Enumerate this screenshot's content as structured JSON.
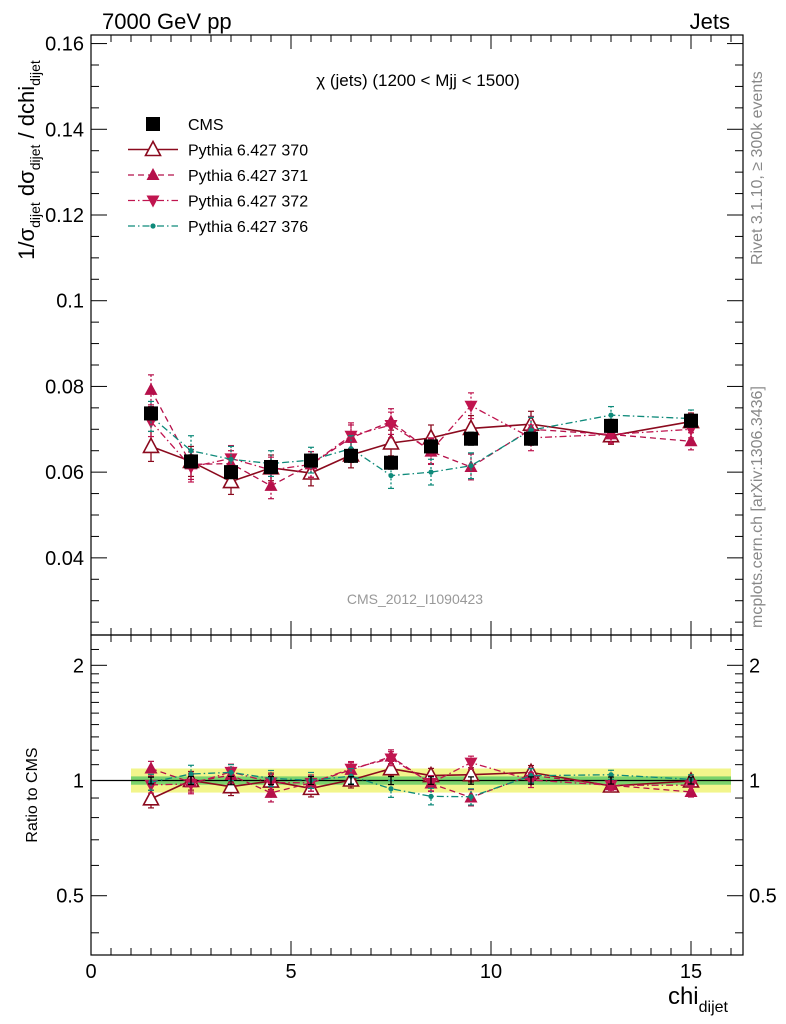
{
  "header": {
    "left": "7000 GeV pp",
    "right": "Jets"
  },
  "side_labels": {
    "rivet": "Rivet 3.1.10, ≥ 300k events",
    "mcplots": "mcplots.cern.ch [arXiv:1306.3436]"
  },
  "chart_data": {
    "type": "scatter",
    "title": "χ (jets) (1200 < Mjj < 1500)",
    "watermark": "CMS_2012_I1090423",
    "x": [
      1.5,
      2.5,
      3.5,
      4.5,
      5.5,
      6.5,
      7.5,
      8.5,
      9.5,
      11,
      13,
      15
    ],
    "xlim": [
      0,
      16.3
    ],
    "xticks": [
      "0",
      "5",
      "10",
      "15"
    ],
    "xlabel": "chi",
    "xlabel_sub": "dijet",
    "ylabel": {
      "p1": "1/σ",
      "s1": "dijet",
      "p2": " dσ",
      "s2": "dijet",
      "p3": " / dchi",
      "s3": "dijet"
    },
    "ylim": [
      0.022,
      0.162
    ],
    "yticks": [
      "0.04",
      "0.06",
      "0.08",
      "0.1",
      "0.12",
      "0.14",
      "0.16"
    ],
    "ratio_ylabel": "Ratio to CMS",
    "ratio_yticks": [
      "0.5",
      "1",
      "2"
    ],
    "ratio_ylim": [
      0.35,
      2.4
    ],
    "series": [
      {
        "name": "CMS",
        "color": "#000000",
        "marker": "square",
        "values": [
          0.0737,
          0.0625,
          0.06,
          0.0612,
          0.0627,
          0.0638,
          0.0622,
          0.066,
          0.0678,
          0.0678,
          0.0708,
          0.072
        ],
        "errors": [
          0.0015,
          0.0015,
          0.0015,
          0.0015,
          0.0015,
          0.0015,
          0.0015,
          0.0015,
          0.0015,
          0.0015,
          0.0015,
          0.0015
        ]
      },
      {
        "name": "Pythia 6.427 370",
        "color": "#8b0a1e",
        "marker": "triangle-up-open",
        "line": "solid",
        "values": [
          0.066,
          0.0625,
          0.0578,
          0.061,
          0.0598,
          0.064,
          0.0668,
          0.068,
          0.0702,
          0.0712,
          0.0685,
          0.0718
        ],
        "errors": [
          0.0035,
          0.0035,
          0.003,
          0.003,
          0.003,
          0.003,
          0.003,
          0.003,
          0.003,
          0.003,
          0.002,
          0.002
        ]
      },
      {
        "name": "Pythia 6.427 371",
        "color": "#b5104a",
        "marker": "triangle-up",
        "line": "dashed",
        "values": [
          0.0792,
          0.0618,
          0.062,
          0.0568,
          0.0618,
          0.068,
          0.0718,
          0.0648,
          0.0612,
          0.07,
          0.0688,
          0.0672
        ],
        "errors": [
          0.0035,
          0.0035,
          0.003,
          0.003,
          0.003,
          0.003,
          0.003,
          0.003,
          0.003,
          0.003,
          0.002,
          0.002
        ]
      },
      {
        "name": "Pythia 6.427 372",
        "color": "#c0154f",
        "marker": "triangle-down",
        "line": "dashdot",
        "values": [
          0.0718,
          0.0612,
          0.0632,
          0.0605,
          0.0618,
          0.0685,
          0.071,
          0.065,
          0.0755,
          0.068,
          0.0688,
          0.07
        ],
        "errors": [
          0.0035,
          0.0035,
          0.003,
          0.003,
          0.003,
          0.003,
          0.003,
          0.003,
          0.003,
          0.003,
          0.002,
          0.002
        ]
      },
      {
        "name": "Pythia 6.427 376",
        "color": "#0e8a7a",
        "marker": "dot",
        "line": "dashdot",
        "values": [
          0.073,
          0.065,
          0.063,
          0.062,
          0.0628,
          0.0655,
          0.0592,
          0.06,
          0.0615,
          0.0698,
          0.0733,
          0.0725
        ],
        "errors": [
          0.0035,
          0.0035,
          0.003,
          0.003,
          0.003,
          0.003,
          0.003,
          0.003,
          0.003,
          0.003,
          0.002,
          0.002
        ]
      }
    ],
    "band_colors": {
      "inner": "#66cc66",
      "outer": "#f2f58c",
      "ratio_line": "#000000"
    }
  }
}
